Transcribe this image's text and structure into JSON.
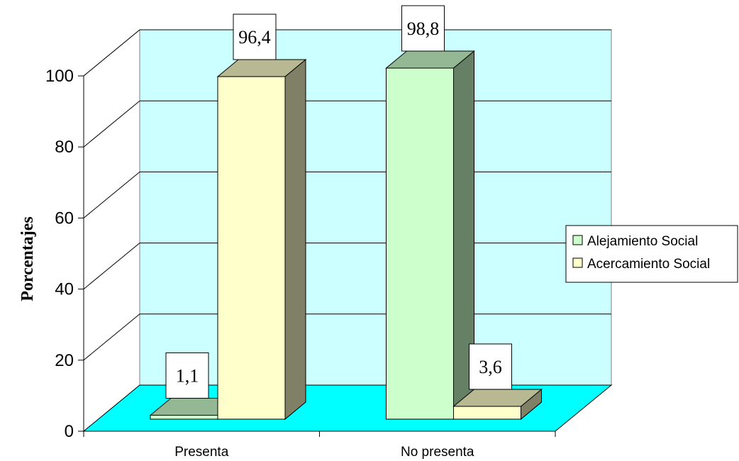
{
  "chart_data": {
    "type": "bar",
    "categories": [
      "Presenta",
      "No presenta"
    ],
    "series": [
      {
        "name": "Alejamiento Social",
        "values": [
          1.1,
          98.8
        ],
        "labels": [
          "1,1",
          "98,8"
        ],
        "color": "#ccffcc"
      },
      {
        "name": "Acercamiento Social",
        "values": [
          96.4,
          3.6
        ],
        "labels": [
          "96,4",
          "3,6"
        ],
        "color": "#ffffcc"
      }
    ],
    "ylabel": "Porcentajes",
    "ylim": [
      0,
      100
    ],
    "yticks": [
      {
        "value": 0,
        "label": "0"
      },
      {
        "value": 20,
        "label": "20"
      },
      {
        "value": 40,
        "label": "40"
      },
      {
        "value": 60,
        "label": "60"
      },
      {
        "value": 80,
        "label": "80"
      },
      {
        "value": 100,
        "label": "100"
      }
    ],
    "legend_position": "right",
    "style": "3d-column",
    "colors": {
      "back_wall": "#ccffff",
      "floor": "#00ffff",
      "grid": "#000000"
    }
  }
}
